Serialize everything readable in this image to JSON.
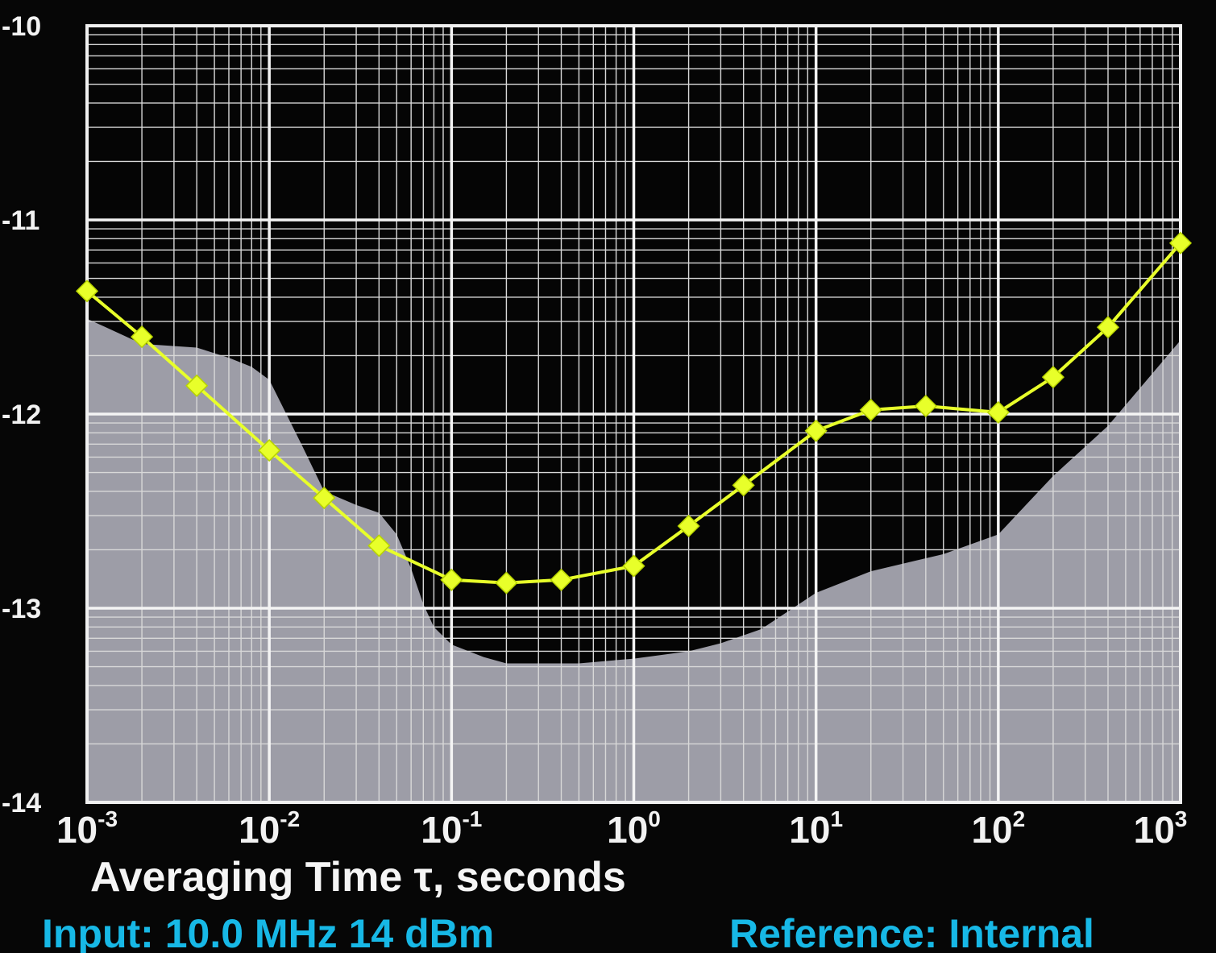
{
  "chart_data": {
    "type": "line",
    "xlabel": "Averaging Time τ, seconds",
    "x_scale": "log",
    "y_scale": "log",
    "xlim": [
      0.001,
      1000
    ],
    "ylim": [
      1e-14,
      1e-10
    ],
    "grid": true,
    "x_ticks": [
      {
        "base": "10",
        "exp": "-3"
      },
      {
        "base": "10",
        "exp": "-2"
      },
      {
        "base": "10",
        "exp": "-1"
      },
      {
        "base": "10",
        "exp": "0"
      },
      {
        "base": "10",
        "exp": "1"
      },
      {
        "base": "10",
        "exp": "2"
      },
      {
        "base": "10",
        "exp": "3"
      }
    ],
    "y_ticks": [
      "-10",
      "-11",
      "-12",
      "-13",
      "-14"
    ],
    "series": [
      {
        "color": "#e8ff2a",
        "marker": "diamond",
        "x": [
          0.001,
          0.002,
          0.004,
          0.01,
          0.02,
          0.04,
          0.1,
          0.2,
          0.4,
          1,
          2,
          4,
          10,
          20,
          40,
          100,
          200,
          400,
          1000
        ],
        "y": [
          4.3e-12,
          2.5e-12,
          1.4e-12,
          6.5e-13,
          3.7e-13,
          2.1e-13,
          1.4e-13,
          1.35e-13,
          1.4e-13,
          1.65e-13,
          2.65e-13,
          4.3e-13,
          8.2e-13,
          1.05e-12,
          1.1e-12,
          1.02e-12,
          1.55e-12,
          2.8e-12,
          7.6e-12
        ]
      }
    ],
    "spec_limit_shading": {
      "color": "#9d9da7",
      "x": [
        0.001,
        0.002,
        0.004,
        0.006,
        0.008,
        0.01,
        0.015,
        0.02,
        0.03,
        0.04,
        0.05,
        0.06,
        0.07,
        0.08,
        0.1,
        0.15,
        0.2,
        0.3,
        0.5,
        1,
        2,
        3,
        5,
        10,
        20,
        50,
        100,
        200,
        400,
        1000
      ],
      "y": [
        3.1e-12,
        2.3e-12,
        2.2e-12,
        1.95e-12,
        1.75e-12,
        1.5e-12,
        7e-13,
        4e-13,
        3.4e-13,
        3.1e-13,
        2.4e-13,
        1.6e-13,
        1.05e-13,
        8e-14,
        6.5e-14,
        5.6e-14,
        5.2e-14,
        5.2e-14,
        5.2e-14,
        5.5e-14,
        6e-14,
        6.6e-14,
        7.8e-14,
        1.2e-13,
        1.55e-13,
        1.9e-13,
        2.4e-13,
        4.8e-13,
        8.7e-13,
        2.4e-12
      ]
    },
    "footer": {
      "left": "Input: 10.0 MHz 14 dBm",
      "right": "Reference: Internal"
    }
  }
}
